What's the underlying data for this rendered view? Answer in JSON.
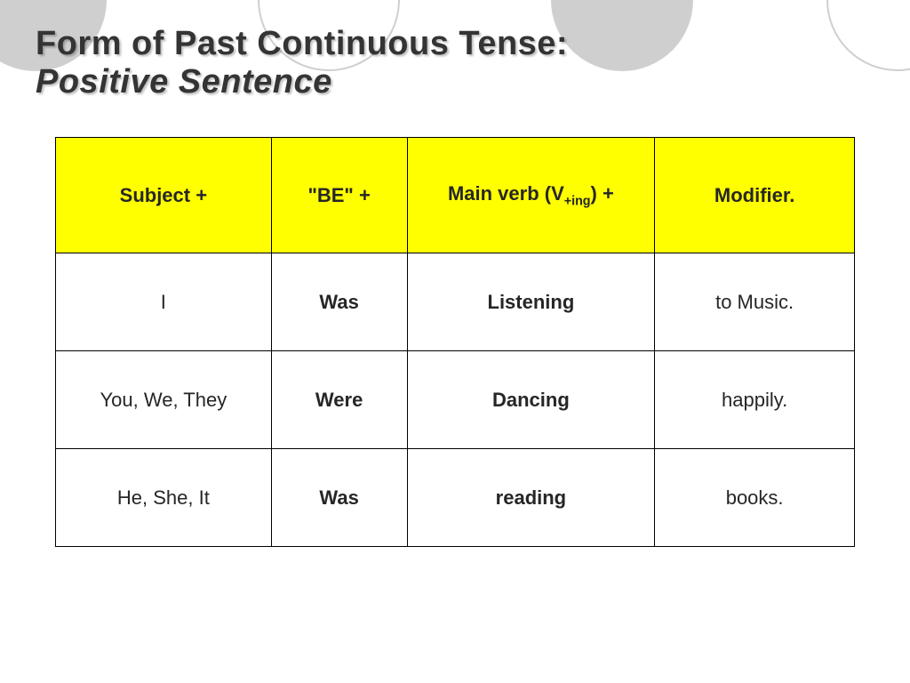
{
  "title": {
    "line1": "Form of Past Continuous Tense:",
    "line2": "Positive Sentence"
  },
  "table": {
    "headers": {
      "subject": "Subject +",
      "be": "\"BE\"  +",
      "verb_prefix": "Main verb (V",
      "verb_sub": "+ing",
      "verb_suffix": ") +",
      "modifier": "Modifier."
    },
    "rows": [
      {
        "subject": "I",
        "be": "Was",
        "verb": "Listening",
        "modifier": "to Music."
      },
      {
        "subject": "You, We, They",
        "be": "Were",
        "verb": "Dancing",
        "modifier": "happily."
      },
      {
        "subject": "He, She, It",
        "be": "Was",
        "verb": "reading",
        "modifier": "books."
      }
    ]
  },
  "style": {
    "header_bg": "#ffff00",
    "border_color": "#000000",
    "text_color": "#262626",
    "circle_fill": "#cfcfcf"
  }
}
